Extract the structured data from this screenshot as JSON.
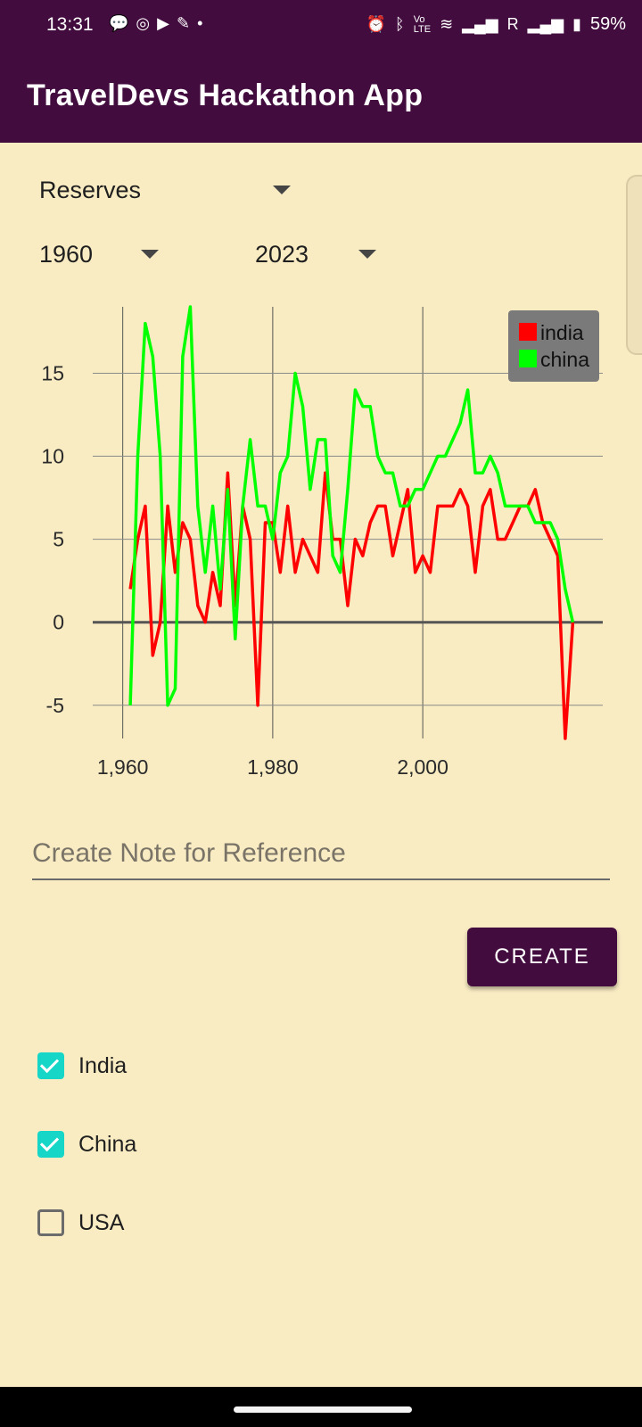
{
  "status_bar": {
    "time": "13:31",
    "left_icons": [
      "chat-bubble-icon",
      "check-circle-icon",
      "youtube-icon",
      "app-icon",
      "dot-icon"
    ],
    "right_icons": [
      "alarm-icon",
      "bluetooth-icon",
      "volte-icon",
      "wifi-icon",
      "signal-icon",
      "signal-r-icon",
      "battery-icon"
    ],
    "roaming": "R",
    "battery": "59%"
  },
  "app_bar": {
    "title": "TravelDevs Hackathon App"
  },
  "controls": {
    "metric": "Reserves",
    "start_year": "1960",
    "end_year": "2023"
  },
  "chart_data": {
    "type": "line",
    "xlim": [
      1956,
      2024
    ],
    "ylim": [
      -7,
      19
    ],
    "xticks": [
      1960,
      1980,
      2000
    ],
    "xtick_labels": [
      "1,960",
      "1,980",
      "2,000"
    ],
    "yticks": [
      -5,
      0,
      5,
      10,
      15
    ],
    "grid": true,
    "legend_position": "top-right",
    "series": [
      {
        "name": "india",
        "color": "#ff0000",
        "x": [
          1961,
          1962,
          1963,
          1964,
          1965,
          1966,
          1967,
          1968,
          1969,
          1970,
          1971,
          1972,
          1973,
          1974,
          1975,
          1976,
          1977,
          1978,
          1979,
          1980,
          1981,
          1982,
          1983,
          1984,
          1985,
          1986,
          1987,
          1988,
          1989,
          1990,
          1991,
          1992,
          1993,
          1994,
          1995,
          1996,
          1997,
          1998,
          1999,
          2000,
          2001,
          2002,
          2003,
          2004,
          2005,
          2006,
          2007,
          2008,
          2009,
          2010,
          2011,
          2012,
          2013,
          2014,
          2015,
          2016,
          2017,
          2018,
          2019,
          2020,
          2021,
          2022
        ],
        "y": [
          2,
          5,
          7,
          -2,
          0,
          7,
          3,
          6,
          5,
          1,
          0,
          3,
          1,
          9,
          1,
          7,
          5,
          -5,
          6,
          6,
          3,
          7,
          3,
          5,
          4,
          3,
          9,
          5,
          5,
          1,
          5,
          4,
          6,
          7,
          7,
          4,
          6,
          8,
          3,
          4,
          3,
          7,
          7,
          7,
          8,
          7,
          3,
          7,
          8,
          5,
          5,
          6,
          7,
          7,
          8,
          6,
          5,
          4,
          -7,
          0,
          null,
          null
        ]
      },
      {
        "name": "china",
        "color": "#00ff00",
        "x": [
          1961,
          1962,
          1963,
          1964,
          1965,
          1966,
          1967,
          1968,
          1969,
          1970,
          1971,
          1972,
          1973,
          1974,
          1975,
          1976,
          1977,
          1978,
          1979,
          1980,
          1981,
          1982,
          1983,
          1984,
          1985,
          1986,
          1987,
          1988,
          1989,
          1990,
          1991,
          1992,
          1993,
          1994,
          1995,
          1996,
          1997,
          1998,
          1999,
          2000,
          2001,
          2002,
          2003,
          2004,
          2005,
          2006,
          2007,
          2008,
          2009,
          2010,
          2011,
          2012,
          2013,
          2014,
          2015,
          2016,
          2017,
          2018,
          2019,
          2020,
          2021,
          2022
        ],
        "y": [
          -5,
          10,
          18,
          16,
          10,
          -5,
          -4,
          16,
          19,
          7,
          3,
          7,
          2,
          8,
          -1,
          7,
          11,
          7,
          7,
          5,
          9,
          10,
          15,
          13,
          8,
          11,
          11,
          4,
          3,
          8,
          14,
          13,
          13,
          10,
          9,
          9,
          7,
          7,
          8,
          8,
          9,
          10,
          10,
          11,
          12,
          14,
          9,
          9,
          10,
          9,
          7,
          7,
          7,
          7,
          6,
          6,
          6,
          5,
          2,
          0,
          null,
          null
        ]
      }
    ]
  },
  "note": {
    "placeholder": "Create Note for Reference",
    "value": ""
  },
  "create_button": {
    "label": "CREATE"
  },
  "countries": [
    {
      "label": "India",
      "checked": true
    },
    {
      "label": "China",
      "checked": true
    },
    {
      "label": "USA",
      "checked": false
    }
  ],
  "colors": {
    "primary": "#420c3e",
    "background": "#f9ecc3",
    "checkbox_on": "#16d7c7"
  }
}
